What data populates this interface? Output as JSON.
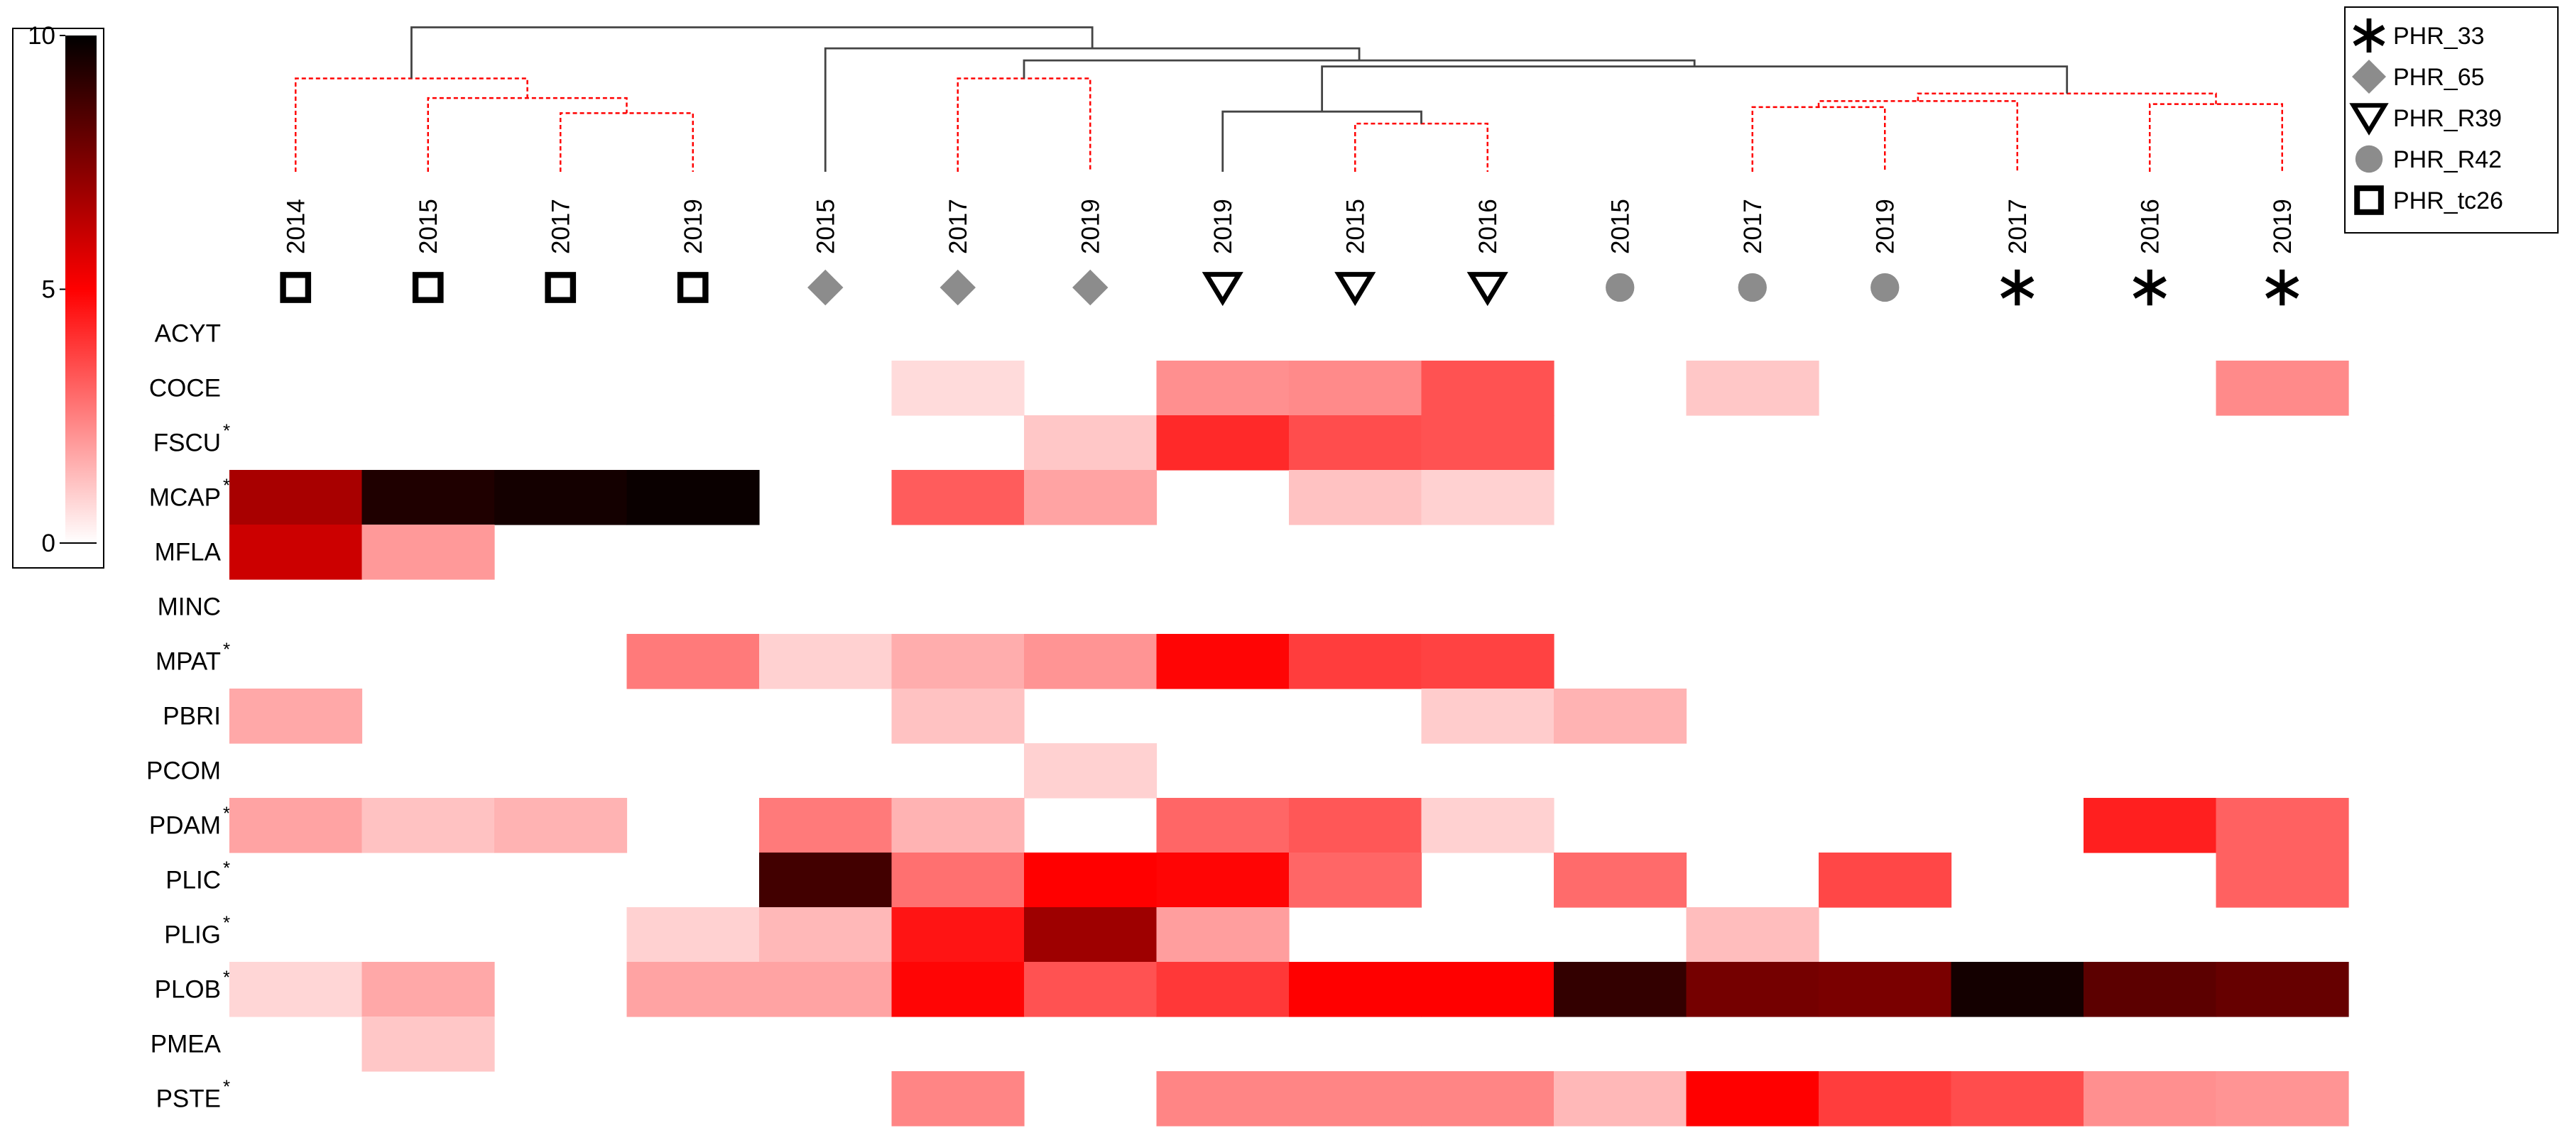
{
  "chart_data": {
    "type": "heatmap",
    "title": "",
    "colorbar": {
      "min": 0,
      "max": 10,
      "ticks": [
        "0",
        "5",
        "10"
      ],
      "stops": [
        {
          "v": 0,
          "c": "#ffffff"
        },
        {
          "v": 5,
          "c": "#ff0000"
        },
        {
          "v": 10,
          "c": "#000000"
        }
      ]
    },
    "columns": [
      {
        "label": "2014",
        "group": "PHR_tc26"
      },
      {
        "label": "2015",
        "group": "PHR_tc26"
      },
      {
        "label": "2017",
        "group": "PHR_tc26"
      },
      {
        "label": "2019",
        "group": "PHR_tc26"
      },
      {
        "label": "2015",
        "group": "PHR_65"
      },
      {
        "label": "2017",
        "group": "PHR_65"
      },
      {
        "label": "2019",
        "group": "PHR_65"
      },
      {
        "label": "2019",
        "group": "PHR_R39"
      },
      {
        "label": "2015",
        "group": "PHR_R39"
      },
      {
        "label": "2016",
        "group": "PHR_R39"
      },
      {
        "label": "2015",
        "group": "PHR_R42"
      },
      {
        "label": "2017",
        "group": "PHR_R42"
      },
      {
        "label": "2019",
        "group": "PHR_R42"
      },
      {
        "label": "2017",
        "group": "PHR_33"
      },
      {
        "label": "2016",
        "group": "PHR_33"
      },
      {
        "label": "2019",
        "group": "PHR_33"
      }
    ],
    "rows": [
      {
        "name": "ACYT",
        "star": ""
      },
      {
        "name": "COCE",
        "star": ""
      },
      {
        "name": "FSCU",
        "star": "*"
      },
      {
        "name": "MCAP",
        "star": "*"
      },
      {
        "name": "MFLA",
        "star": ""
      },
      {
        "name": "MINC",
        "star": ""
      },
      {
        "name": "MPAT",
        "star": "*"
      },
      {
        "name": "PBRI",
        "star": ""
      },
      {
        "name": "PCOM",
        "star": ""
      },
      {
        "name": "PDAM",
        "star": "*"
      },
      {
        "name": "PLIC",
        "star": "*"
      },
      {
        "name": "PLIG",
        "star": "*"
      },
      {
        "name": "PLOB",
        "star": "*"
      },
      {
        "name": "PMEA",
        "star": ""
      },
      {
        "name": "PSTE",
        "star": "*"
      }
    ],
    "values": [
      [
        0,
        0,
        0,
        0,
        0,
        0,
        0,
        0,
        0,
        0,
        0,
        0,
        0,
        0,
        0,
        0
      ],
      [
        0,
        0,
        0,
        0,
        0,
        0.7,
        0,
        2.2,
        2.3,
        3.4,
        0,
        1.1,
        0,
        0,
        0,
        2.3
      ],
      [
        0,
        0,
        0,
        0,
        0,
        0,
        1.1,
        4.2,
        3.5,
        3.4,
        0,
        0,
        0,
        0,
        0,
        0
      ],
      [
        6.7,
        9.4,
        9.6,
        9.8,
        0,
        3.2,
        1.8,
        0,
        1.2,
        0.9,
        0,
        0,
        0,
        0,
        0,
        0
      ],
      [
        6.0,
        2.0,
        0,
        0,
        0,
        0,
        0,
        0,
        0,
        0,
        0,
        0,
        0,
        0,
        0,
        0
      ],
      [
        0,
        0,
        0,
        0,
        0,
        0,
        0,
        0,
        0,
        0,
        0,
        0,
        0,
        0,
        0,
        0
      ],
      [
        0,
        0,
        0,
        2.6,
        0.9,
        1.6,
        2.1,
        4.9,
        3.8,
        3.7,
        0,
        0,
        0,
        0,
        0,
        0
      ],
      [
        1.7,
        0,
        0,
        0,
        0,
        1.2,
        0,
        0,
        0,
        1.0,
        1.5,
        0,
        0,
        0,
        0,
        0
      ],
      [
        0,
        0,
        0,
        0,
        0,
        0,
        0.9,
        0,
        0,
        0,
        0,
        0,
        0,
        0,
        0,
        0
      ],
      [
        1.8,
        1.2,
        1.5,
        0,
        2.6,
        1.5,
        0,
        3.0,
        3.3,
        0.9,
        0,
        0,
        0,
        0,
        4.4,
        3.1
      ],
      [
        0,
        0,
        0,
        0,
        8.7,
        2.8,
        5.0,
        4.9,
        3.0,
        0,
        2.9,
        0,
        3.6,
        0,
        0,
        3.1
      ],
      [
        0,
        0,
        0,
        0.9,
        1.4,
        4.6,
        6.9,
        1.9,
        0,
        0,
        0,
        1.3,
        0,
        0,
        0,
        0
      ],
      [
        0.8,
        1.7,
        0,
        1.8,
        1.8,
        4.9,
        3.4,
        3.9,
        5.0,
        5.0,
        9.0,
        7.7,
        7.6,
        9.6,
        8.2,
        8.0
      ],
      [
        0,
        1.1,
        0,
        0,
        0,
        0,
        0,
        0,
        0,
        0,
        0,
        0,
        0,
        0,
        0,
        0
      ],
      [
        0,
        0,
        0,
        0,
        0,
        2.4,
        0,
        2.4,
        2.4,
        2.4,
        1.4,
        5.0,
        3.8,
        3.5,
        2.2,
        2.1
      ]
    ],
    "legend": {
      "position": "top-right",
      "entries": [
        {
          "label": "PHR_33",
          "marker": "asterisk"
        },
        {
          "label": "PHR_65",
          "marker": "diamond"
        },
        {
          "label": "PHR_R39",
          "marker": "triangle-down"
        },
        {
          "label": "PHR_R42",
          "marker": "circle"
        },
        {
          "label": "PHR_tc26",
          "marker": "square"
        }
      ]
    },
    "dendrogram": {
      "colors": {
        "solid": "#444444",
        "dashed": "#ff0000"
      },
      "merges": [
        {
          "a": 2,
          "b": 3,
          "level": 0.61,
          "style": "dashed"
        },
        {
          "a": 1,
          "b": "n1",
          "level": 0.51,
          "style": "dashed"
        },
        {
          "a": 0,
          "b": "n2",
          "level": 0.38,
          "style": "dashed"
        },
        {
          "a": 5,
          "b": 6,
          "level": 0.38,
          "style": "dashed"
        },
        {
          "a": 8,
          "b": 9,
          "level": 0.68,
          "style": "dashed"
        },
        {
          "a": 7,
          "b": "n5",
          "level": 0.6,
          "style": "solid"
        },
        {
          "a": 11,
          "b": 12,
          "level": 0.57,
          "style": "dashed"
        },
        {
          "a": 14,
          "b": 15,
          "level": 0.55,
          "style": "dashed"
        },
        {
          "a": "n7",
          "b": 13,
          "level": 0.53,
          "style": "dashed"
        },
        {
          "a": "n9",
          "b": "n8",
          "level": 0.48,
          "style": "dashed"
        },
        {
          "a": "n6",
          "b": "n10",
          "level": 0.3,
          "style": "solid"
        },
        {
          "a": "n4",
          "b": "n11",
          "level": 0.26,
          "style": "solid"
        },
        {
          "a": 4,
          "b": "n12",
          "level": 0.18,
          "style": "solid"
        },
        {
          "a": "n3",
          "b": "n13",
          "level": 0.04,
          "style": "solid"
        }
      ]
    }
  }
}
